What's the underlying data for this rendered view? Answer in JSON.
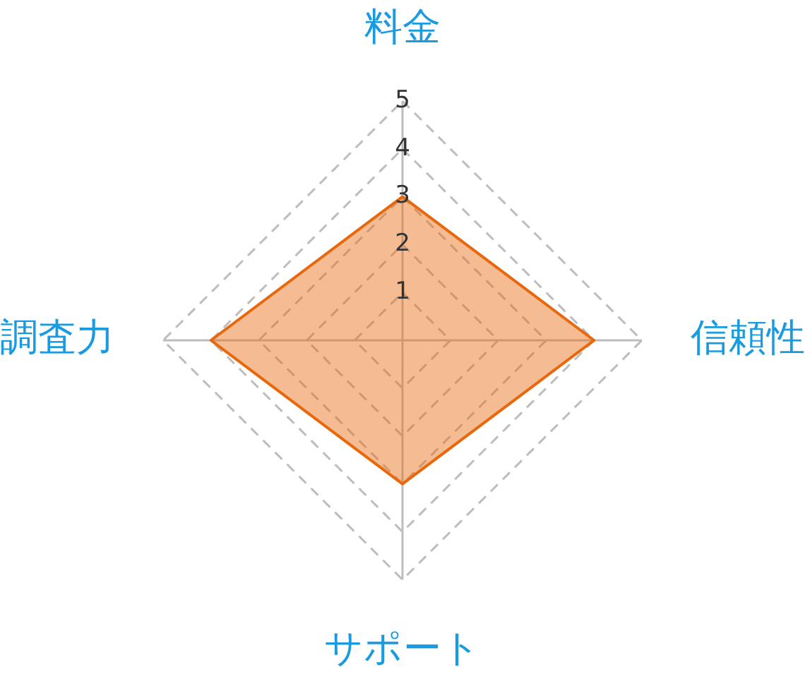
{
  "chart_data": {
    "type": "radar",
    "categories": [
      "料金",
      "信頼性",
      "サポート",
      "調査力"
    ],
    "series": [
      {
        "color": "#e8680e",
        "values": [
          3,
          4,
          3,
          4
        ]
      }
    ],
    "ylim": [
      0,
      5
    ],
    "yticks": [
      1,
      2,
      3,
      4,
      5
    ],
    "grid": true,
    "legend": false,
    "marker": "none"
  }
}
